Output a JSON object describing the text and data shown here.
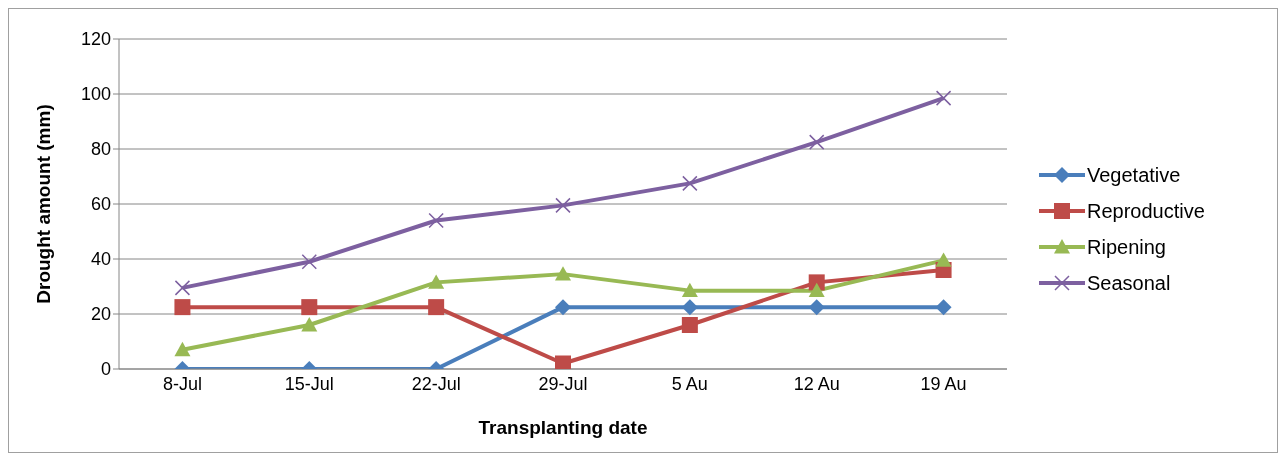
{
  "chart_data": {
    "type": "line",
    "xlabel": "Transplanting date",
    "ylabel": "Drought amount (mm)",
    "categories": [
      "8-Jul",
      "15-Jul",
      "22-Jul",
      "29-Jul",
      "5 Au",
      "12 Au",
      "19 Au"
    ],
    "series": [
      {
        "name": "Vegetative",
        "color": "#4a7ebb",
        "marker": "diamond",
        "values": [
          0,
          0,
          0,
          22.5,
          22.5,
          22.5,
          22.5
        ]
      },
      {
        "name": "Reproductive",
        "color": "#be4b48",
        "marker": "square",
        "values": [
          22.5,
          22.5,
          22.5,
          2,
          16,
          31.5,
          36
        ]
      },
      {
        "name": "Ripening",
        "color": "#98b954",
        "marker": "triangle",
        "values": [
          7,
          16,
          31.5,
          34.5,
          28.5,
          28.5,
          39.5
        ]
      },
      {
        "name": "Seasonal",
        "color": "#7d60a0",
        "marker": "cross",
        "values": [
          29.5,
          39,
          54,
          59.5,
          67.5,
          82.5,
          98.5
        ]
      }
    ],
    "ylim": [
      0,
      120
    ],
    "yticks": [
      0,
      20,
      40,
      60,
      80,
      100,
      120
    ],
    "grid": "y",
    "legend": "right",
    "line_style": "solid"
  }
}
